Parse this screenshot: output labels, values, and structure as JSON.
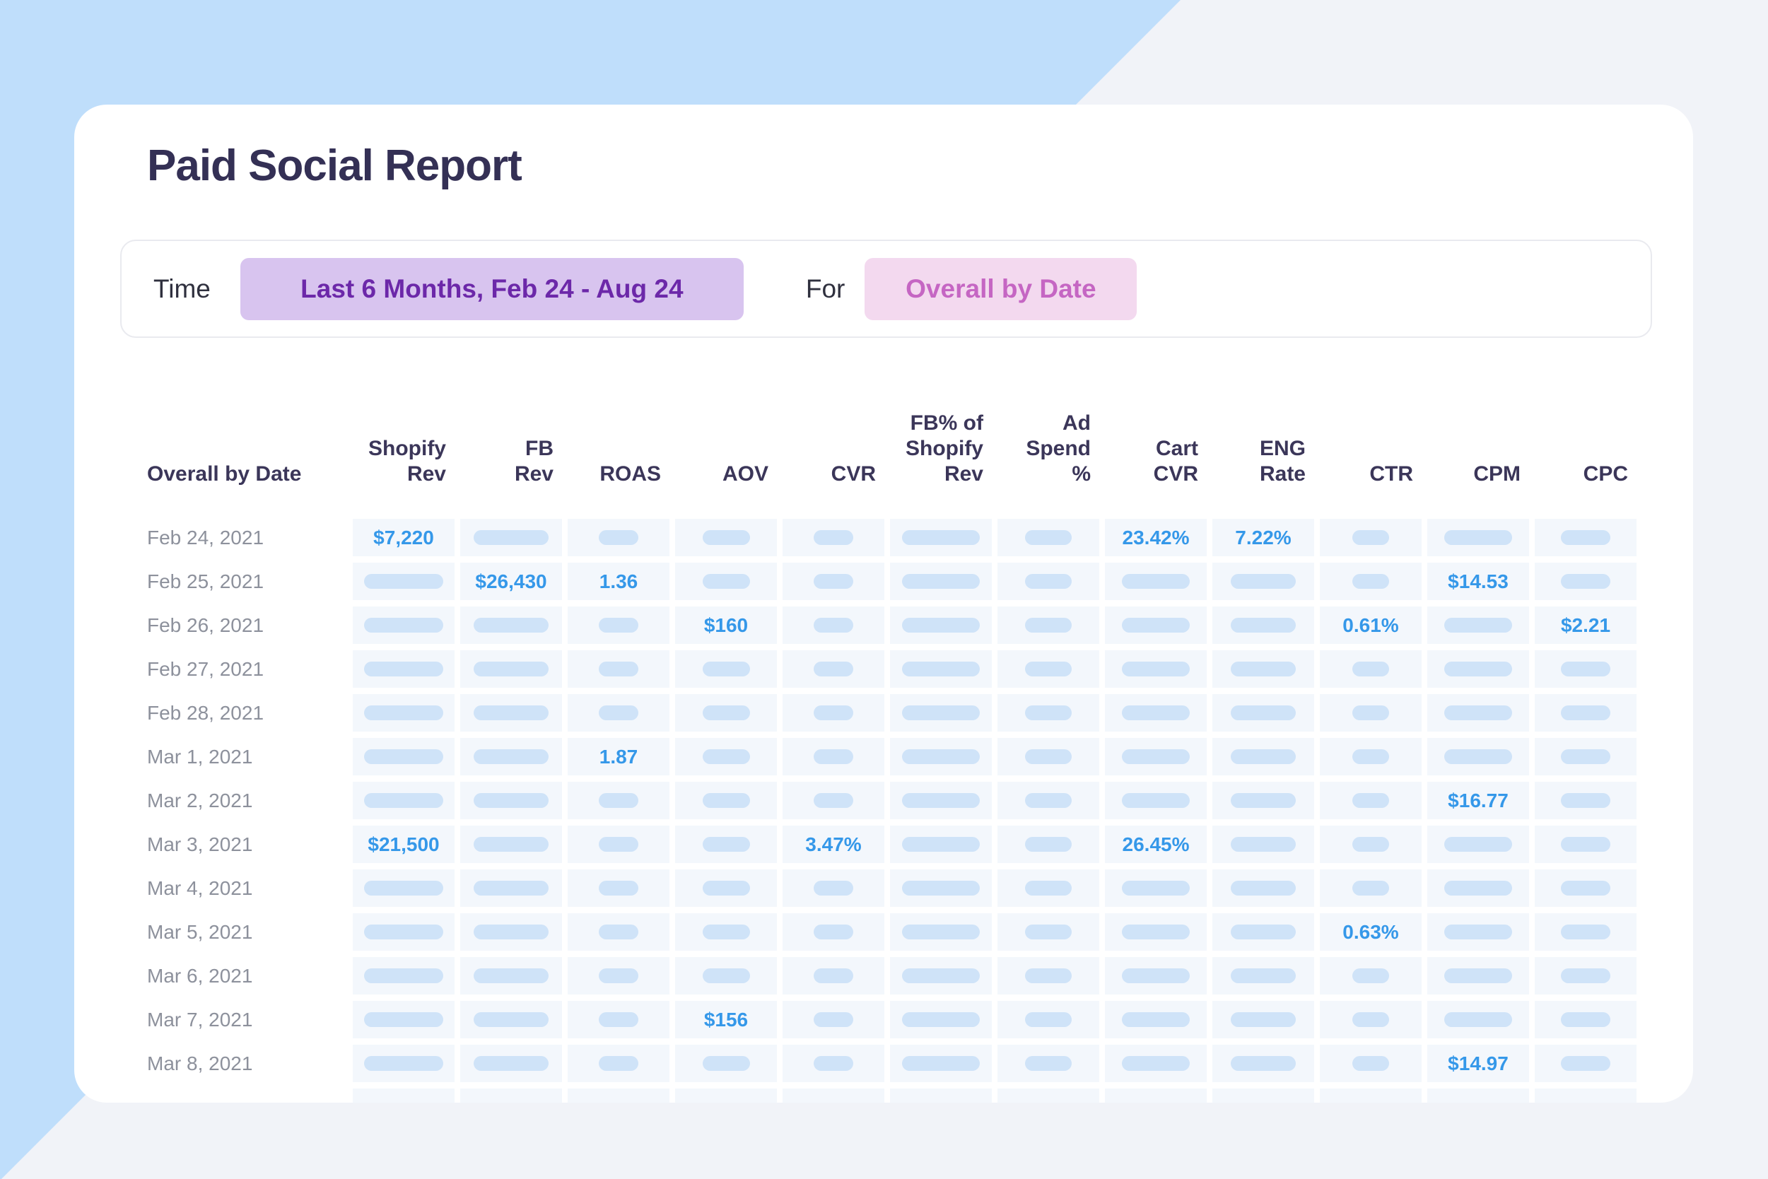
{
  "page": {
    "title": "Paid Social Report"
  },
  "filter": {
    "time_label": "Time",
    "time_value": "Last 6 Months, Feb 24 - Aug 24",
    "for_label": "For",
    "for_value": "Overall by Date"
  },
  "colors": {
    "background_blue": "#bfdefb",
    "background_gray": "#f1f3f8",
    "card": "#ffffff",
    "title_text": "#343055",
    "time_chip_bg": "#d8c4ef",
    "time_chip_text": "#6c28a9",
    "for_chip_bg": "#f3d9ef",
    "for_chip_text": "#c566c3",
    "header_text": "#3b3659",
    "date_text": "#8d919c",
    "cell_bg": "#f3f7fc",
    "placeholder_pill": "#cfe3f8",
    "value_text": "#3598e9"
  },
  "chart_data": {
    "type": "table",
    "title": "Paid Social Report",
    "date_header": "Overall by Date",
    "columns": [
      {
        "key": "shopify_rev",
        "label": "Shopify\nRev",
        "pill_w": 112
      },
      {
        "key": "fb_rev",
        "label": "FB\nRev",
        "pill_w": 106
      },
      {
        "key": "roas",
        "label": "ROAS",
        "pill_w": 56
      },
      {
        "key": "aov",
        "label": "AOV",
        "pill_w": 67
      },
      {
        "key": "cvr",
        "label": "CVR",
        "pill_w": 56
      },
      {
        "key": "fb_pct_shopify_rev",
        "label": "FB% of\nShopify\nRev",
        "pill_w": 110
      },
      {
        "key": "ad_spend_pct",
        "label": "Ad\nSpend\n%",
        "pill_w": 66
      },
      {
        "key": "cart_cvr",
        "label": "Cart\nCVR",
        "pill_w": 96
      },
      {
        "key": "eng_rate",
        "label": "ENG\nRate",
        "pill_w": 92
      },
      {
        "key": "ctr",
        "label": "CTR",
        "pill_w": 52
      },
      {
        "key": "cpm",
        "label": "CPM",
        "pill_w": 96
      },
      {
        "key": "cpc",
        "label": "CPC",
        "pill_w": 70
      }
    ],
    "rows": [
      {
        "date": "Feb 24, 2021",
        "values": {
          "shopify_rev": "$7,220",
          "cart_cvr": "23.42%",
          "eng_rate": "7.22%"
        }
      },
      {
        "date": "Feb 25, 2021",
        "values": {
          "fb_rev": "$26,430",
          "roas": "1.36",
          "cpm": "$14.53"
        }
      },
      {
        "date": "Feb 26, 2021",
        "values": {
          "aov": "$160",
          "ctr": "0.61%",
          "cpc": "$2.21"
        }
      },
      {
        "date": "Feb 27, 2021",
        "values": {}
      },
      {
        "date": "Feb 28, 2021",
        "values": {}
      },
      {
        "date": "Mar 1, 2021",
        "values": {
          "roas": "1.87"
        }
      },
      {
        "date": "Mar 2, 2021",
        "values": {
          "cpm": "$16.77"
        }
      },
      {
        "date": "Mar 3, 2021",
        "values": {
          "shopify_rev": "$21,500",
          "cvr": "3.47%",
          "cart_cvr": "26.45%"
        }
      },
      {
        "date": "Mar 4, 2021",
        "values": {}
      },
      {
        "date": "Mar 5, 2021",
        "values": {
          "ctr": "0.63%"
        }
      },
      {
        "date": "Mar 6, 2021",
        "values": {}
      },
      {
        "date": "Mar 7, 2021",
        "values": {
          "aov": "$156"
        }
      },
      {
        "date": "Mar 8, 2021",
        "values": {
          "cpm": "$14.97"
        }
      },
      {
        "date": "",
        "values": {},
        "partial": true
      }
    ]
  }
}
